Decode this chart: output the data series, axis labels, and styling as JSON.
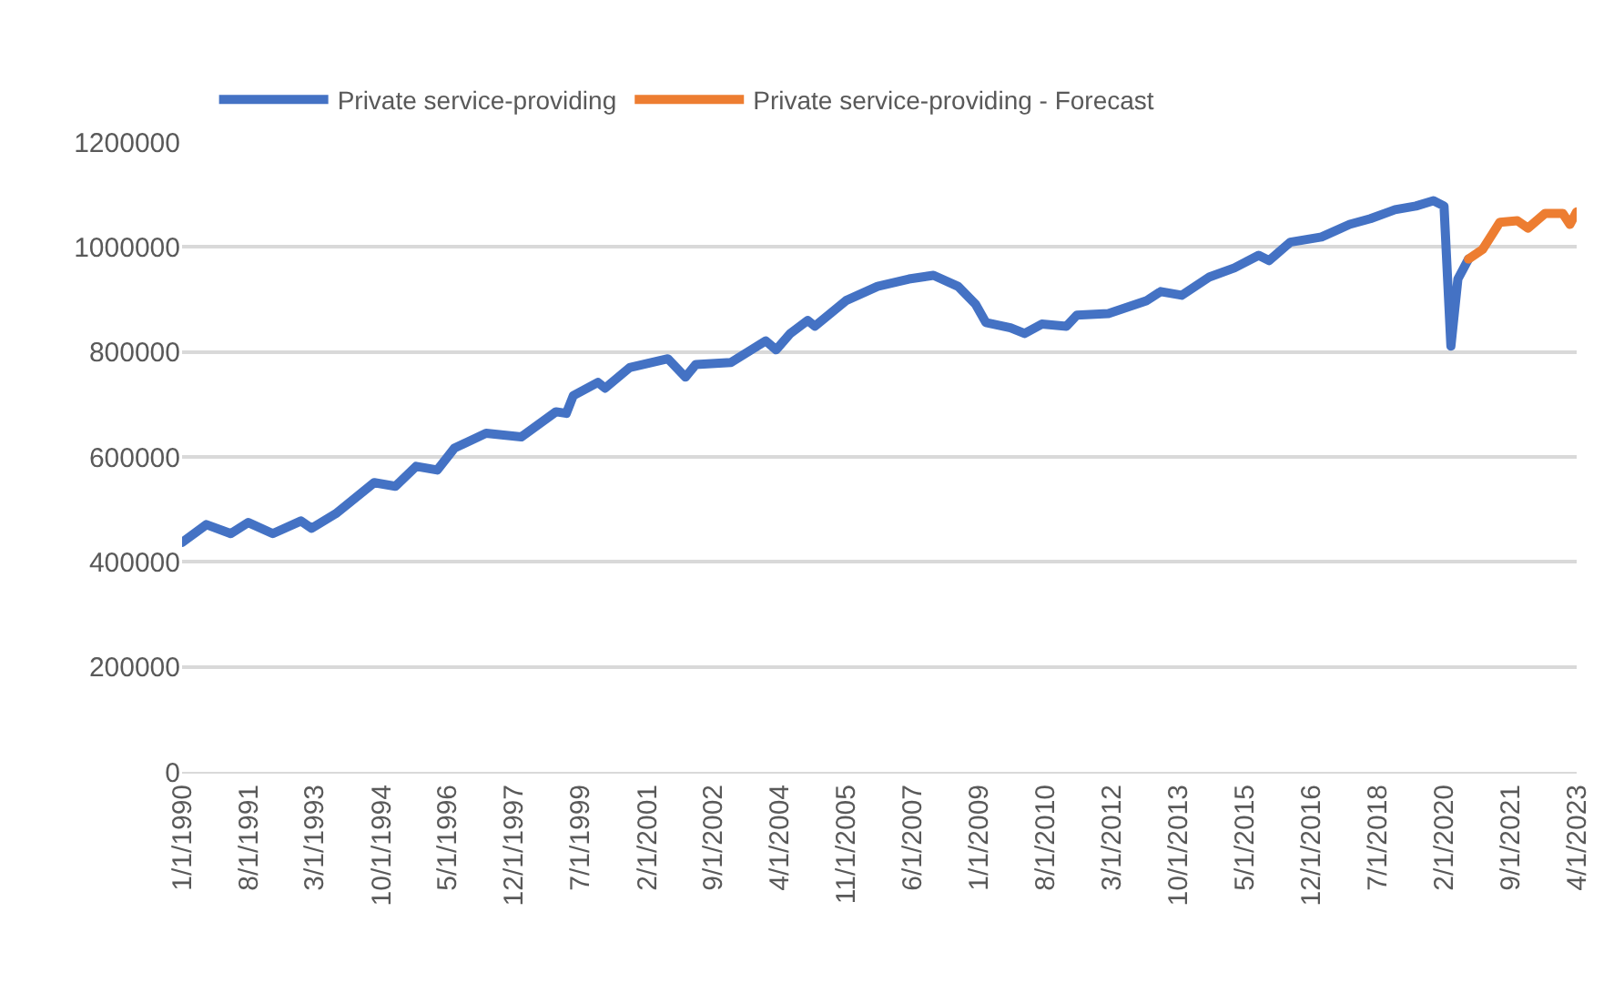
{
  "chart_data": {
    "type": "line",
    "xlim": [
      "1990-01",
      "2023-04"
    ],
    "xticks": [
      {
        "value": "1990-01",
        "label": "1/1/1990"
      },
      {
        "value": "1991-08",
        "label": "8/1/1991"
      },
      {
        "value": "1993-03",
        "label": "3/1/1993"
      },
      {
        "value": "1994-10",
        "label": "10/1/1994"
      },
      {
        "value": "1996-05",
        "label": "5/1/1996"
      },
      {
        "value": "1997-12",
        "label": "12/1/1997"
      },
      {
        "value": "1999-07",
        "label": "7/1/1999"
      },
      {
        "value": "2001-02",
        "label": "2/1/2001"
      },
      {
        "value": "2002-09",
        "label": "9/1/2002"
      },
      {
        "value": "2004-04",
        "label": "4/1/2004"
      },
      {
        "value": "2005-11",
        "label": "11/1/2005"
      },
      {
        "value": "2007-06",
        "label": "6/1/2007"
      },
      {
        "value": "2009-01",
        "label": "1/1/2009"
      },
      {
        "value": "2010-08",
        "label": "8/1/2010"
      },
      {
        "value": "2012-03",
        "label": "3/1/2012"
      },
      {
        "value": "2013-10",
        "label": "10/1/2013"
      },
      {
        "value": "2015-05",
        "label": "5/1/2015"
      },
      {
        "value": "2016-12",
        "label": "12/1/2016"
      },
      {
        "value": "2018-07",
        "label": "7/1/2018"
      },
      {
        "value": "2020-02",
        "label": "2/1/2020"
      },
      {
        "value": "2021-09",
        "label": "9/1/2021"
      },
      {
        "value": "2023-04",
        "label": "4/1/2023"
      }
    ],
    "ylim": [
      0,
      1200000
    ],
    "yticks": [
      0,
      200000,
      400000,
      600000,
      800000,
      1000000,
      1200000
    ],
    "grid": "y",
    "legend": "top",
    "marker": "none",
    "line_style": "solid",
    "series": [
      {
        "name": "Private service-providing",
        "color": "#4472c4",
        "x": [
          "1990-01",
          "1990-08",
          "1991-03",
          "1991-08",
          "1992-03",
          "1992-11",
          "1993-02",
          "1993-09",
          "1994-08",
          "1995-02",
          "1995-08",
          "1996-02",
          "1996-07",
          "1997-04",
          "1998-02",
          "1998-12",
          "1999-03",
          "1999-05",
          "1999-12",
          "2000-02",
          "2000-09",
          "2001-08",
          "2002-01",
          "2002-04",
          "2003-02",
          "2003-12",
          "2004-03",
          "2004-07",
          "2004-12",
          "2005-02",
          "2005-11",
          "2006-08",
          "2007-05",
          "2007-12",
          "2008-07",
          "2008-12",
          "2009-03",
          "2009-10",
          "2010-02",
          "2010-07",
          "2011-02",
          "2011-05",
          "2012-02",
          "2013-01",
          "2013-05",
          "2013-11",
          "2014-07",
          "2015-02",
          "2015-09",
          "2015-12",
          "2016-06",
          "2017-03",
          "2017-11",
          "2018-05",
          "2018-12",
          "2019-06",
          "2019-11",
          "2020-02",
          "2020-04",
          "2020-06",
          "2020-09"
        ],
        "values": [
          437000,
          471000,
          454000,
          475000,
          454000,
          478000,
          464000,
          492000,
          551000,
          544000,
          582000,
          575000,
          617000,
          645000,
          638000,
          686000,
          683000,
          717000,
          742000,
          731000,
          770000,
          787000,
          752000,
          776000,
          780000,
          821000,
          804000,
          835000,
          860000,
          849000,
          898000,
          925000,
          939000,
          946000,
          925000,
          891000,
          856000,
          846000,
          835000,
          853000,
          849000,
          870000,
          873000,
          898000,
          915000,
          908000,
          943000,
          960000,
          984000,
          974000,
          1009000,
          1019000,
          1043000,
          1054000,
          1071000,
          1078000,
          1088000,
          1078000,
          811000,
          939000,
          977000
        ]
      },
      {
        "name": "Private service-providing - Forecast",
        "color": "#ed7d31",
        "x": [
          "2020-09",
          "2021-01",
          "2021-06",
          "2021-11",
          "2022-02",
          "2022-07",
          "2022-12",
          "2023-02",
          "2023-04"
        ],
        "values": [
          977000,
          995000,
          1047000,
          1050000,
          1036000,
          1064000,
          1064000,
          1043000,
          1067000
        ]
      }
    ]
  }
}
